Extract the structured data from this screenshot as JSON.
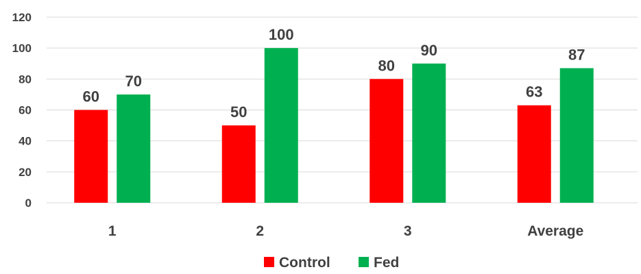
{
  "chart_data": {
    "type": "bar",
    "categories": [
      "1",
      "2",
      "3",
      "Average"
    ],
    "series": [
      {
        "name": "Control",
        "color": "#ff0000",
        "values": [
          60,
          50,
          80,
          63
        ],
        "labels": [
          "60",
          "50",
          "80",
          "63"
        ]
      },
      {
        "name": "Fed",
        "color": "#00b050",
        "values": [
          70,
          100,
          90,
          87
        ],
        "labels": [
          "70",
          "100",
          "90",
          "87"
        ]
      }
    ],
    "ylim": [
      0,
      120
    ],
    "yticks": [
      "0",
      "20",
      "40",
      "60",
      "80",
      "100",
      "120"
    ],
    "grid": true,
    "legend_position": "bottom"
  }
}
